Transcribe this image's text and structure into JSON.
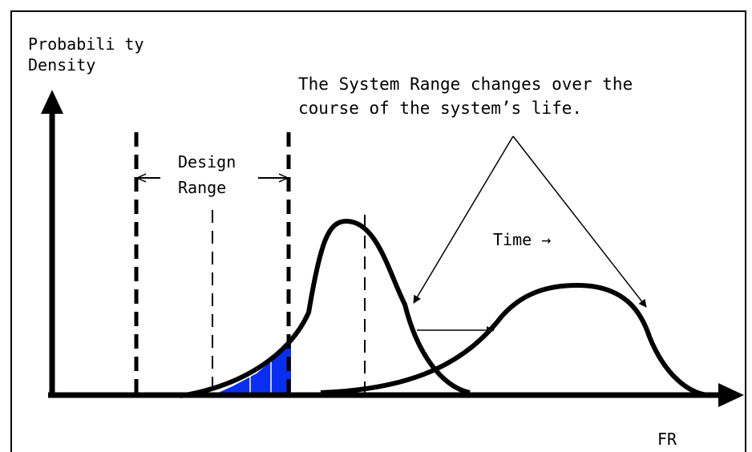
{
  "y_axis_label": [
    "Probabili ty",
    "Density"
  ],
  "annotation": [
    "The System Range changes over the",
    "course of the system’s life."
  ],
  "design_range_label": [
    "Design",
    "Range"
  ],
  "time_label": "Time →",
  "x_axis_label": "FR"
}
